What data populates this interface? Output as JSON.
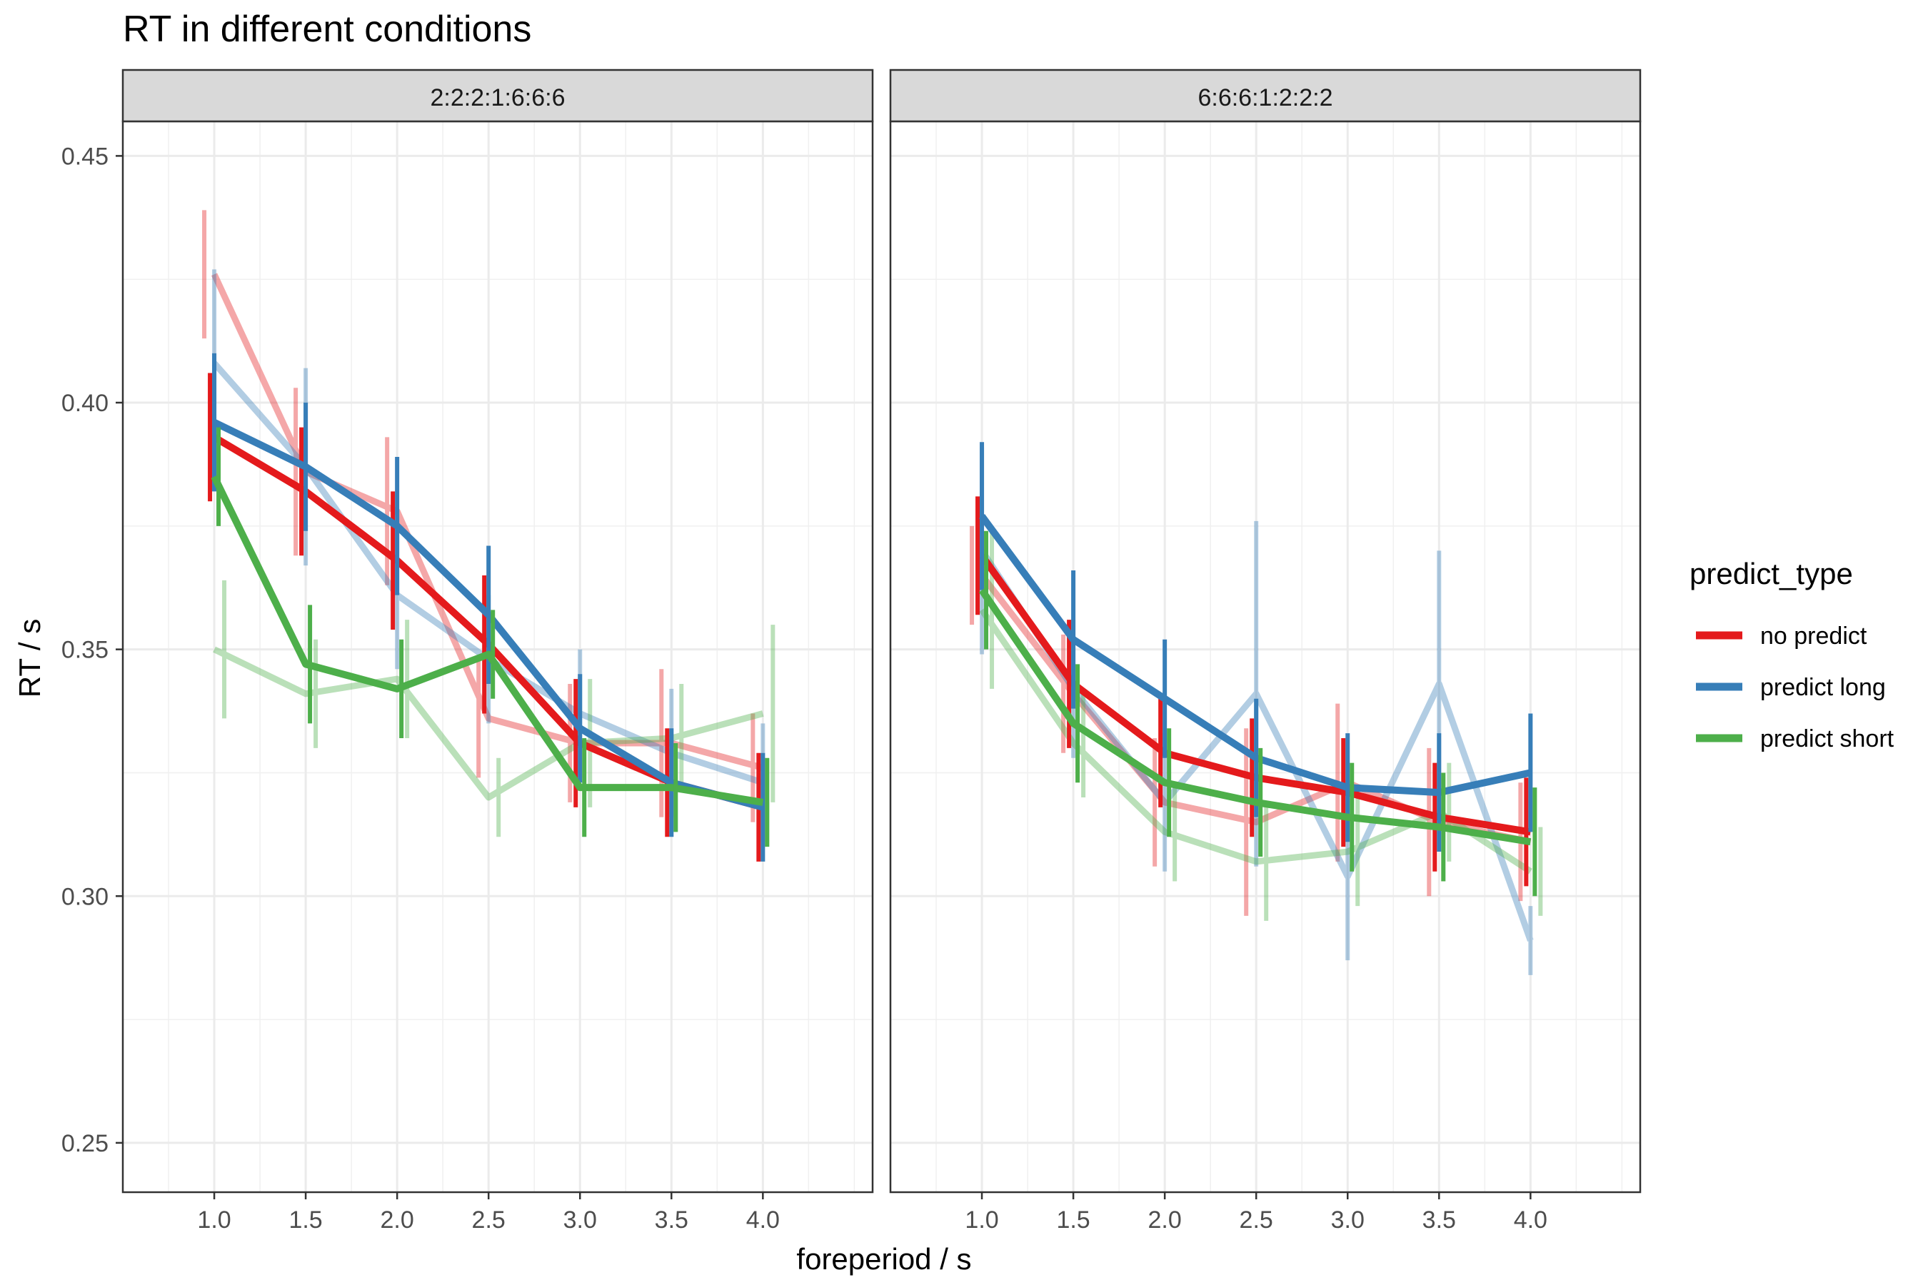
{
  "chart_data": {
    "type": "line",
    "title": "RT in different conditions",
    "xlabel": "foreperiod / s",
    "ylabel": "RT / s",
    "x": [
      1.0,
      1.5,
      2.0,
      2.5,
      3.0,
      3.5,
      4.0
    ],
    "x_tick_labels": [
      "1.0",
      "1.5",
      "2.0",
      "2.5",
      "3.0",
      "3.5",
      "4.0"
    ],
    "xlim": [
      0.5,
      4.6
    ],
    "ylim": [
      0.24,
      0.457
    ],
    "y_ticks": [
      0.25,
      0.3,
      0.35,
      0.4,
      0.45
    ],
    "y_tick_labels": [
      "0.25",
      "0.30",
      "0.35",
      "0.40",
      "0.45"
    ],
    "grid": true,
    "legend": {
      "title": "predict_type",
      "position": "right",
      "entries": [
        {
          "label": "no predict",
          "color": "#E41A1C"
        },
        {
          "label": "predict long",
          "color": "#377EB8"
        },
        {
          "label": "predict short",
          "color": "#4DAF4A"
        }
      ]
    },
    "colors": {
      "no predict": "#E41A1C",
      "predict long": "#377EB8",
      "predict short": "#4DAF4A"
    },
    "panels": [
      {
        "strip": "2:2:2:1:6:6:6",
        "series": [
          {
            "name": "no predict",
            "layer": "faded",
            "y": [
              0.426,
              0.386,
              0.378,
              0.336,
              0.331,
              0.331,
              0.326
            ],
            "err": [
              0.013,
              0.017,
              0.015,
              0.012,
              0.012,
              0.015,
              0.011
            ]
          },
          {
            "name": "predict long",
            "layer": "faded",
            "y": [
              0.408,
              0.387,
              0.361,
              0.348,
              0.337,
              0.329,
              0.323
            ],
            "err": [
              0.019,
              0.02,
              0.015,
              0.013,
              0.013,
              0.013,
              0.012
            ]
          },
          {
            "name": "predict short",
            "layer": "faded",
            "y": [
              0.35,
              0.341,
              0.344,
              0.32,
              0.331,
              0.332,
              0.337
            ],
            "err": [
              0.014,
              0.011,
              0.012,
              0.008,
              0.013,
              0.011,
              0.018
            ]
          },
          {
            "name": "no predict",
            "layer": "main",
            "y": [
              0.393,
              0.382,
              0.368,
              0.351,
              0.331,
              0.323,
              0.318
            ],
            "err": [
              0.013,
              0.013,
              0.014,
              0.014,
              0.013,
              0.011,
              0.011
            ]
          },
          {
            "name": "predict long",
            "layer": "main",
            "y": [
              0.396,
              0.387,
              0.375,
              0.357,
              0.334,
              0.323,
              0.318
            ],
            "err": [
              0.014,
              0.013,
              0.014,
              0.014,
              0.011,
              0.011,
              0.011
            ]
          },
          {
            "name": "predict short",
            "layer": "main",
            "y": [
              0.385,
              0.347,
              0.342,
              0.349,
              0.322,
              0.322,
              0.319
            ],
            "err": [
              0.01,
              0.012,
              0.01,
              0.009,
              0.01,
              0.009,
              0.009
            ]
          }
        ]
      },
      {
        "strip": "6:6:6:1:2:2:2",
        "series": [
          {
            "name": "no predict",
            "layer": "faded",
            "y": [
              0.365,
              0.341,
              0.319,
              0.315,
              0.323,
              0.315,
              0.311
            ],
            "err": [
              0.01,
              0.012,
              0.013,
              0.019,
              0.016,
              0.015,
              0.012
            ]
          },
          {
            "name": "predict long",
            "layer": "faded",
            "y": [
              0.37,
              0.342,
              0.319,
              0.341,
              0.304,
              0.343,
              0.291
            ],
            "err": [
              0.021,
              0.014,
              0.014,
              0.035,
              0.017,
              0.027,
              0.007
            ]
          },
          {
            "name": "predict short",
            "layer": "faded",
            "y": [
              0.358,
              0.331,
              0.313,
              0.307,
              0.309,
              0.317,
              0.305
            ],
            "err": [
              0.016,
              0.011,
              0.01,
              0.012,
              0.011,
              0.01,
              0.009
            ]
          },
          {
            "name": "no predict",
            "layer": "main",
            "y": [
              0.369,
              0.343,
              0.329,
              0.324,
              0.321,
              0.316,
              0.313
            ],
            "err": [
              0.012,
              0.013,
              0.011,
              0.012,
              0.011,
              0.011,
              0.011
            ]
          },
          {
            "name": "predict long",
            "layer": "main",
            "y": [
              0.377,
              0.352,
              0.34,
              0.328,
              0.322,
              0.321,
              0.325
            ],
            "err": [
              0.015,
              0.014,
              0.012,
              0.012,
              0.011,
              0.012,
              0.012
            ]
          },
          {
            "name": "predict short",
            "layer": "main",
            "y": [
              0.362,
              0.335,
              0.323,
              0.319,
              0.316,
              0.314,
              0.311
            ],
            "err": [
              0.012,
              0.012,
              0.011,
              0.011,
              0.011,
              0.011,
              0.011
            ]
          }
        ]
      }
    ]
  }
}
